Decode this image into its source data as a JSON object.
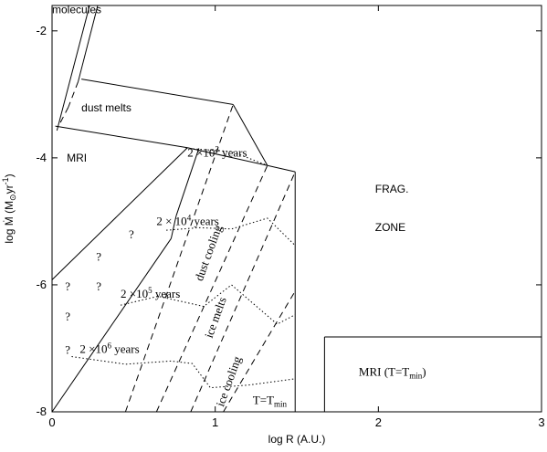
{
  "chart_data": {
    "type": "line",
    "xlabel": "log R (A.U.)",
    "ylabel_parts": {
      "main": "log Ṁ (M",
      "sub": "⊙",
      "mid": "yr",
      "sup": "-1",
      "end": ")"
    },
    "xlim": [
      0,
      3
    ],
    "ylim": [
      -8,
      -1.6
    ],
    "x_ticks": [
      {
        "v": 0,
        "label": "0"
      },
      {
        "v": 1,
        "label": "1"
      },
      {
        "v": 2,
        "label": "2"
      },
      {
        "v": 3,
        "label": "3"
      }
    ],
    "y_ticks": [
      {
        "v": -2,
        "label": "-2"
      },
      {
        "v": -4,
        "label": "-4"
      },
      {
        "v": -6,
        "label": "-6"
      },
      {
        "v": -8,
        "label": "-8"
      }
    ],
    "grid": false,
    "legend": "none",
    "solid_lines": [
      {
        "name": "molecules-boundary-left",
        "points": [
          [
            0.03,
            -3.57
          ],
          [
            0.23,
            -1.6
          ]
        ]
      },
      {
        "name": "molecules-boundary-right",
        "points": [
          [
            0.16,
            -2.8
          ],
          [
            0.28,
            -1.6
          ]
        ]
      },
      {
        "name": "dust-melts-top",
        "points": [
          [
            0.18,
            -2.76
          ],
          [
            1.11,
            -3.16
          ]
        ]
      },
      {
        "name": "dust-melts-right",
        "points": [
          [
            1.11,
            -3.16
          ],
          [
            1.32,
            -4.12
          ]
        ]
      },
      {
        "name": "dust-melts-bottom-a",
        "points": [
          [
            0.02,
            -3.5
          ],
          [
            0.83,
            -3.84
          ]
        ]
      },
      {
        "name": "dust-melts-bottom-b",
        "points": [
          [
            0.83,
            -3.84
          ],
          [
            1.32,
            -4.12
          ]
        ]
      },
      {
        "name": "mri-boundary-lower",
        "points": [
          [
            0.0,
            -3.6
          ],
          [
            0.0,
            -8.0
          ]
        ]
      },
      {
        "name": "mri-diagonal",
        "points": [
          [
            0.0,
            -5.92
          ],
          [
            0.83,
            -3.84
          ]
        ]
      },
      {
        "name": "zone-right-edge",
        "points": [
          [
            1.49,
            -4.22
          ],
          [
            1.49,
            -8.0
          ]
        ]
      },
      {
        "name": "outer-line",
        "points": [
          [
            1.32,
            -4.12
          ],
          [
            1.49,
            -4.22
          ]
        ]
      },
      {
        "name": "main-diagonal",
        "points": [
          [
            0.0,
            -8.0
          ],
          [
            0.73,
            -5.27
          ]
        ]
      },
      {
        "name": "main-diagonal-b",
        "points": [
          [
            0.73,
            -5.27
          ],
          [
            0.76,
            -4.92
          ]
        ]
      },
      {
        "name": "main-diagonal-c",
        "points": [
          [
            0.76,
            -4.92
          ],
          [
            0.9,
            -3.85
          ]
        ]
      },
      {
        "name": "mri-tmin-left",
        "points": [
          [
            1.67,
            -8.0
          ],
          [
            1.67,
            -6.82
          ]
        ]
      },
      {
        "name": "mri-tmin-top",
        "points": [
          [
            1.67,
            -6.82
          ],
          [
            3.0,
            -6.82
          ]
        ]
      }
    ],
    "dashed_lines": [
      {
        "name": "dust-melts-dashed-upper",
        "points": [
          [
            0.16,
            -2.8
          ],
          [
            0.1,
            -3.2
          ]
        ]
      },
      {
        "name": "dust-melts-dashed-lower",
        "points": [
          [
            0.1,
            -3.2
          ],
          [
            0.04,
            -3.5
          ]
        ]
      },
      {
        "name": "dust-cooling",
        "points": [
          [
            0.45,
            -8.0
          ],
          [
            1.11,
            -3.16
          ]
        ]
      },
      {
        "name": "ice-melts",
        "points": [
          [
            0.64,
            -8.0
          ],
          [
            1.32,
            -4.12
          ]
        ]
      },
      {
        "name": "ice-cooling",
        "points": [
          [
            0.85,
            -8.0
          ],
          [
            1.49,
            -4.22
          ]
        ]
      },
      {
        "name": "t-tmin",
        "points": [
          [
            1.05,
            -8.0
          ],
          [
            1.49,
            -6.1
          ]
        ]
      }
    ],
    "dotted_lines": [
      {
        "name": "2e3-years",
        "points": [
          [
            0.82,
            -3.85
          ],
          [
            1.1,
            -3.9
          ],
          [
            1.32,
            -4.12
          ]
        ]
      },
      {
        "name": "2e4-years",
        "points": [
          [
            0.7,
            -5.14
          ],
          [
            0.9,
            -5.1
          ],
          [
            1.1,
            -5.12
          ],
          [
            1.32,
            -4.95
          ],
          [
            1.49,
            -5.38
          ]
        ]
      },
      {
        "name": "2e5-years",
        "points": [
          [
            0.42,
            -6.32
          ],
          [
            0.65,
            -6.18
          ],
          [
            0.93,
            -6.34
          ],
          [
            1.1,
            -6.0
          ],
          [
            1.38,
            -6.62
          ],
          [
            1.49,
            -6.47
          ]
        ]
      },
      {
        "name": "2e6-years",
        "points": [
          [
            0.12,
            -7.13
          ],
          [
            0.45,
            -7.25
          ],
          [
            0.73,
            -7.2
          ],
          [
            0.86,
            -7.24
          ],
          [
            0.97,
            -7.62
          ],
          [
            1.2,
            -7.58
          ],
          [
            1.49,
            -7.48
          ]
        ]
      }
    ],
    "annotations": [
      {
        "name": "molecules",
        "text": "molecules",
        "x": 0.0,
        "y": -1.72,
        "rotate": 0,
        "serif": false
      },
      {
        "name": "dust-melts",
        "text": "dust melts",
        "x": 0.18,
        "y": -3.27,
        "rotate": 0,
        "serif": false
      },
      {
        "name": "mri",
        "text": "MRI",
        "x": 0.09,
        "y": -4.06,
        "rotate": 0,
        "serif": false
      },
      {
        "name": "frag",
        "text": "FRAG.",
        "x": 1.98,
        "y": -4.55,
        "rotate": 0,
        "serif": false
      },
      {
        "name": "zone",
        "text": "ZONE",
        "x": 1.98,
        "y": -5.15,
        "rotate": 0,
        "serif": false
      },
      {
        "name": "q1",
        "text": "?",
        "x": 0.47,
        "y": -5.27,
        "rotate": 0,
        "serif": true
      },
      {
        "name": "q2",
        "text": "?",
        "x": 0.27,
        "y": -5.62,
        "rotate": 0,
        "serif": true
      },
      {
        "name": "q3",
        "text": "?",
        "x": 0.08,
        "y": -6.09,
        "rotate": 0,
        "serif": true
      },
      {
        "name": "q4",
        "text": "?",
        "x": 0.27,
        "y": -6.09,
        "rotate": 0,
        "serif": true
      },
      {
        "name": "q5",
        "text": "?",
        "x": 0.08,
        "y": -6.56,
        "rotate": 0,
        "serif": true
      },
      {
        "name": "q6",
        "text": "?",
        "x": 0.08,
        "y": -7.09,
        "rotate": 0,
        "serif": true
      },
      {
        "name": "dust-cooling-label",
        "text": "dust  cooling",
        "x": 0.92,
        "y": -5.95,
        "rotate": -70,
        "serif": true
      },
      {
        "name": "ice-melts-label",
        "text": "ice  melts",
        "x": 0.98,
        "y": -6.85,
        "rotate": -70,
        "serif": true
      },
      {
        "name": "ice-cooling-label",
        "text": "ice  cooling",
        "x": 1.05,
        "y": -7.93,
        "rotate": -70,
        "serif": true
      }
    ],
    "year_labels": [
      {
        "name": "label-2e3",
        "pre": "2 ×10",
        "sup": "3",
        "post": " years",
        "x": 0.83,
        "y": -3.98
      },
      {
        "name": "label-2e4",
        "pre": "2 × 10",
        "sup": "4",
        "post": " years",
        "x": 0.64,
        "y": -5.06
      },
      {
        "name": "label-2e5",
        "pre": "2 ×10",
        "sup": "5",
        "post": " years",
        "x": 0.42,
        "y": -6.2
      },
      {
        "name": "label-2e6",
        "pre": "2 ×10",
        "sup": "6",
        "post": " years",
        "x": 0.17,
        "y": -7.07
      }
    ],
    "sub_labels": [
      {
        "name": "t-tmin-label",
        "pre": "T=T",
        "sub": "min",
        "post": "",
        "x": 1.23,
        "y": -7.88
      },
      {
        "name": "mri-tmin-label",
        "pre": "MRI  (T=T",
        "sub": "min",
        "post": ")",
        "x": 1.88,
        "y": -7.43
      }
    ]
  }
}
